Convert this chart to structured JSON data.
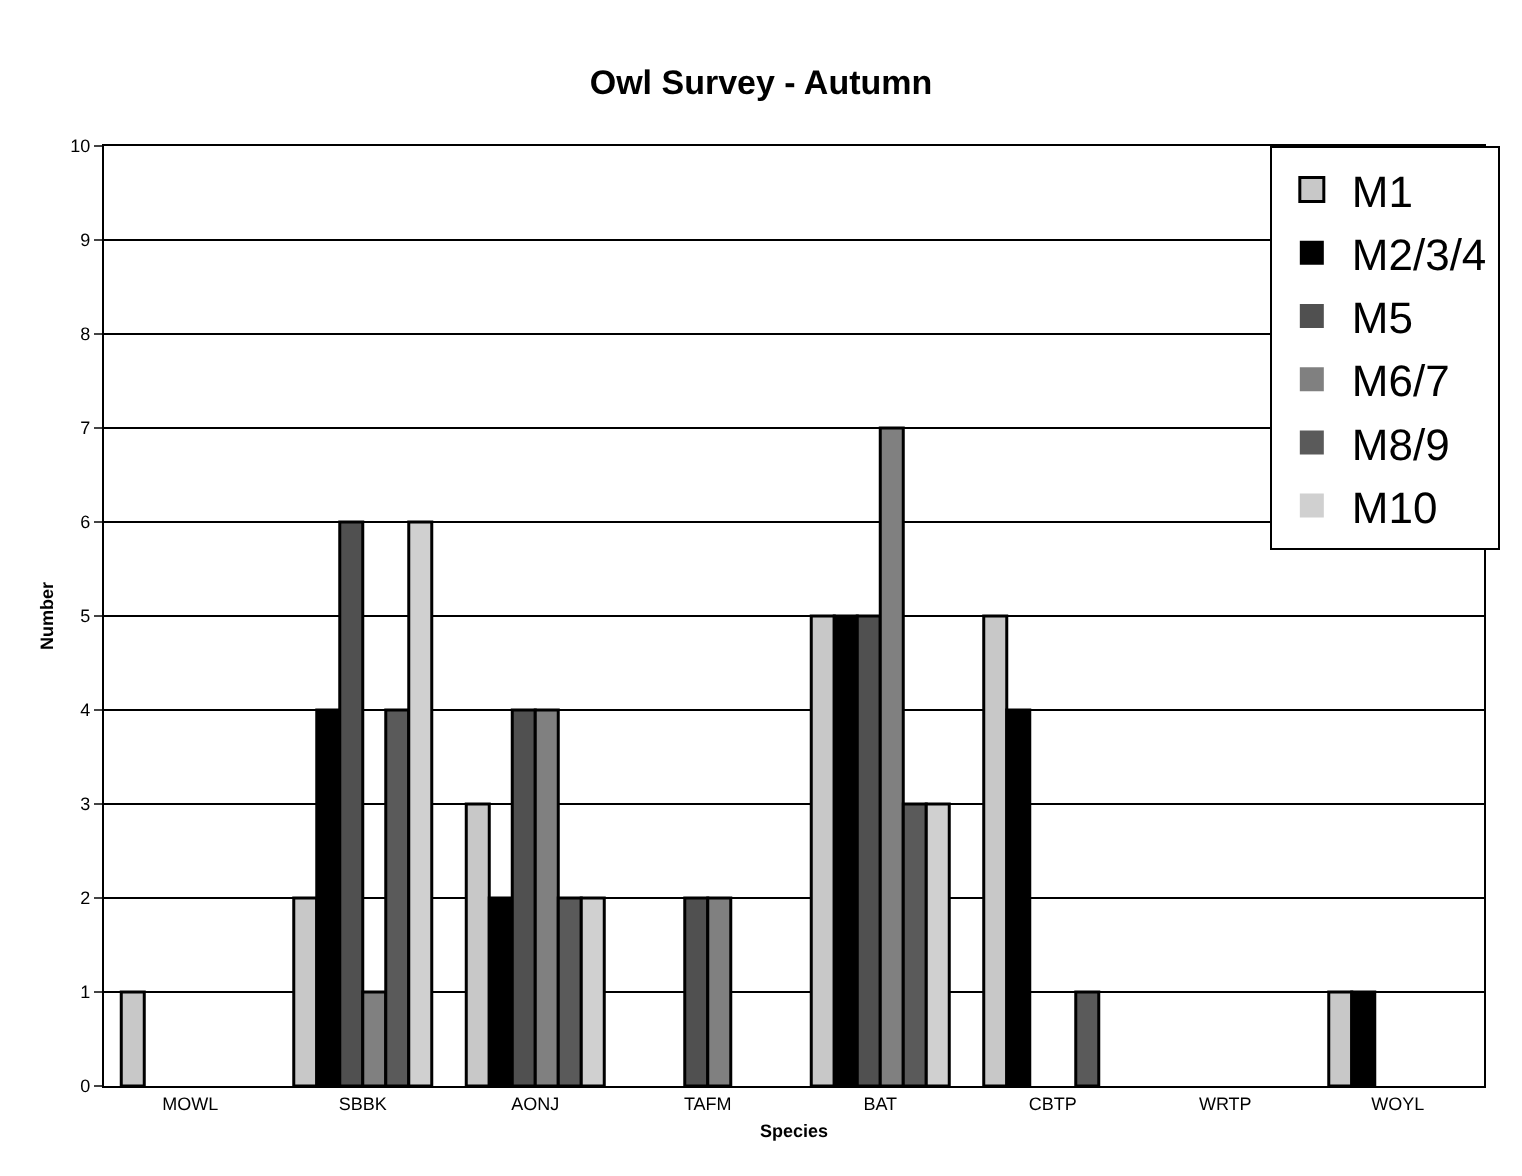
{
  "chart_data": {
    "type": "bar",
    "title": "Owl Survey - Autumn",
    "xlabel": "Species",
    "ylabel": "Number",
    "categories": [
      "MOWL",
      "SBBK",
      "AONJ",
      "TAFM",
      "BAT",
      "CBTP",
      "WRTP",
      "WOYL"
    ],
    "series": [
      {
        "name": "M1",
        "color": "#c8c8c8",
        "values": [
          1,
          2,
          3,
          0,
          5,
          5,
          0,
          1
        ]
      },
      {
        "name": "M2/3/4",
        "color": "#000000",
        "values": [
          0,
          4,
          2,
          0,
          5,
          4,
          0,
          1
        ]
      },
      {
        "name": "M5",
        "color": "#505050",
        "values": [
          0,
          6,
          4,
          2,
          5,
          0,
          0,
          0
        ]
      },
      {
        "name": "M6/7",
        "color": "#808080",
        "values": [
          0,
          1,
          4,
          2,
          7,
          0,
          0,
          0
        ]
      },
      {
        "name": "M8/9",
        "color": "#5a5a5a",
        "values": [
          0,
          4,
          2,
          0,
          3,
          1,
          0,
          0
        ]
      },
      {
        "name": "M10",
        "color": "#d0d0d0",
        "values": [
          0,
          6,
          2,
          0,
          3,
          0,
          0,
          0
        ]
      }
    ],
    "ylim": [
      0,
      10
    ],
    "yticks": [
      0,
      1,
      2,
      3,
      4,
      5,
      6,
      7,
      8,
      9,
      10
    ],
    "grid": "y",
    "legend": "top right"
  }
}
